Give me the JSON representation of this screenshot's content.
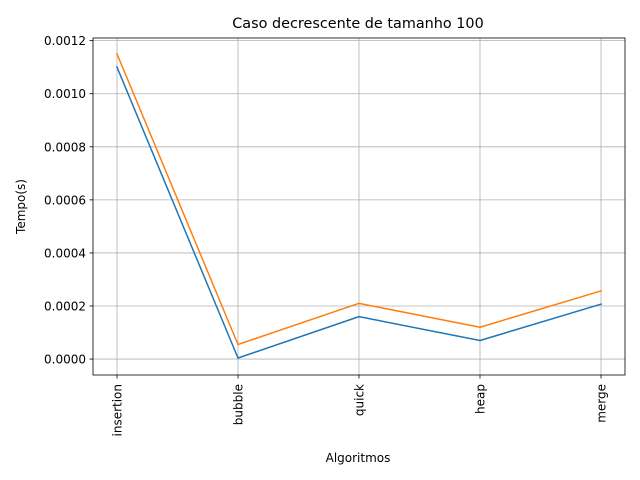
{
  "chart_data": {
    "type": "line",
    "title": "Caso decrescente de tamanho 100",
    "xlabel": "Algoritmos",
    "ylabel": "Tempo(s)",
    "categories": [
      "insertion",
      "bubble",
      "quick",
      "heap",
      "merge"
    ],
    "ylim": [
      -6e-05,
      0.00121
    ],
    "yticks": [
      0.0,
      0.0002,
      0.0004,
      0.0006,
      0.0008,
      0.001,
      0.0012
    ],
    "ytick_labels": [
      "0.0000",
      "0.0002",
      "0.0004",
      "0.0006",
      "0.0008",
      "0.0010",
      "0.0012"
    ],
    "grid": true,
    "legend": "none",
    "series": [
      {
        "color": "#1f77b4",
        "values": [
          0.0011,
          4e-06,
          0.00016,
          7e-05,
          0.000207
        ]
      },
      {
        "color": "#ff7f0e",
        "values": [
          0.00115,
          5.5e-05,
          0.00021,
          0.00012,
          0.000257
        ]
      }
    ]
  }
}
